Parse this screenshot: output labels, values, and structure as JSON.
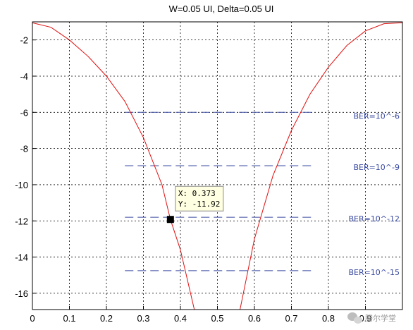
{
  "chart_data": {
    "type": "line",
    "title": "W=0.05 UI, Delta=0.05 UI",
    "xlabel": "",
    "ylabel": "",
    "xlim": [
      0,
      1
    ],
    "ylim": [
      -16.9,
      -1
    ],
    "xticks": [
      0,
      0.1,
      0.2,
      0.3,
      0.4,
      0.5,
      0.6,
      0.7,
      0.8,
      0.9
    ],
    "yticks": [
      -2,
      -4,
      -6,
      -8,
      -10,
      -12,
      -14,
      -16
    ],
    "grid": true,
    "series": [
      {
        "color": "#e01010",
        "style": "solid",
        "x": [
          0.0,
          0.05,
          0.1,
          0.15,
          0.2,
          0.25,
          0.3,
          0.35,
          0.373,
          0.4,
          0.45,
          0.55,
          0.6,
          0.65,
          0.7,
          0.75,
          0.8,
          0.85,
          0.9,
          0.95,
          1.0
        ],
        "y": [
          -1.05,
          -1.3,
          -2.0,
          -2.9,
          -4.0,
          -5.4,
          -7.4,
          -10.0,
          -11.92,
          -13.6,
          -18.0,
          -18.0,
          -13.0,
          -9.5,
          -7.0,
          -5.0,
          -3.5,
          -2.3,
          -1.5,
          -1.1,
          -1.05
        ]
      }
    ],
    "ber_levels": [
      {
        "label": "BER=10^-6",
        "y": -6.0,
        "x_start": 0.25,
        "x_end": 0.76,
        "color": "#3a4aa0"
      },
      {
        "label": "BER=10^-9",
        "y": -8.95,
        "x_start": 0.25,
        "x_end": 0.76,
        "color": "#3a4aa0"
      },
      {
        "label": "BER=10^-12",
        "y": -11.8,
        "x_start": 0.25,
        "x_end": 0.76,
        "color": "#3a4aa0"
      },
      {
        "label": "BER=10^-15",
        "y": -14.75,
        "x_start": 0.25,
        "x_end": 0.76,
        "color": "#3a4aa0"
      }
    ],
    "datatip": {
      "x": 0.373,
      "y": -11.92,
      "x_text": "X: 0.373",
      "y_text": "Y: -11.92"
    }
  },
  "watermark": {
    "text": "腾尔学堂",
    "icon": "wechat-icon"
  }
}
